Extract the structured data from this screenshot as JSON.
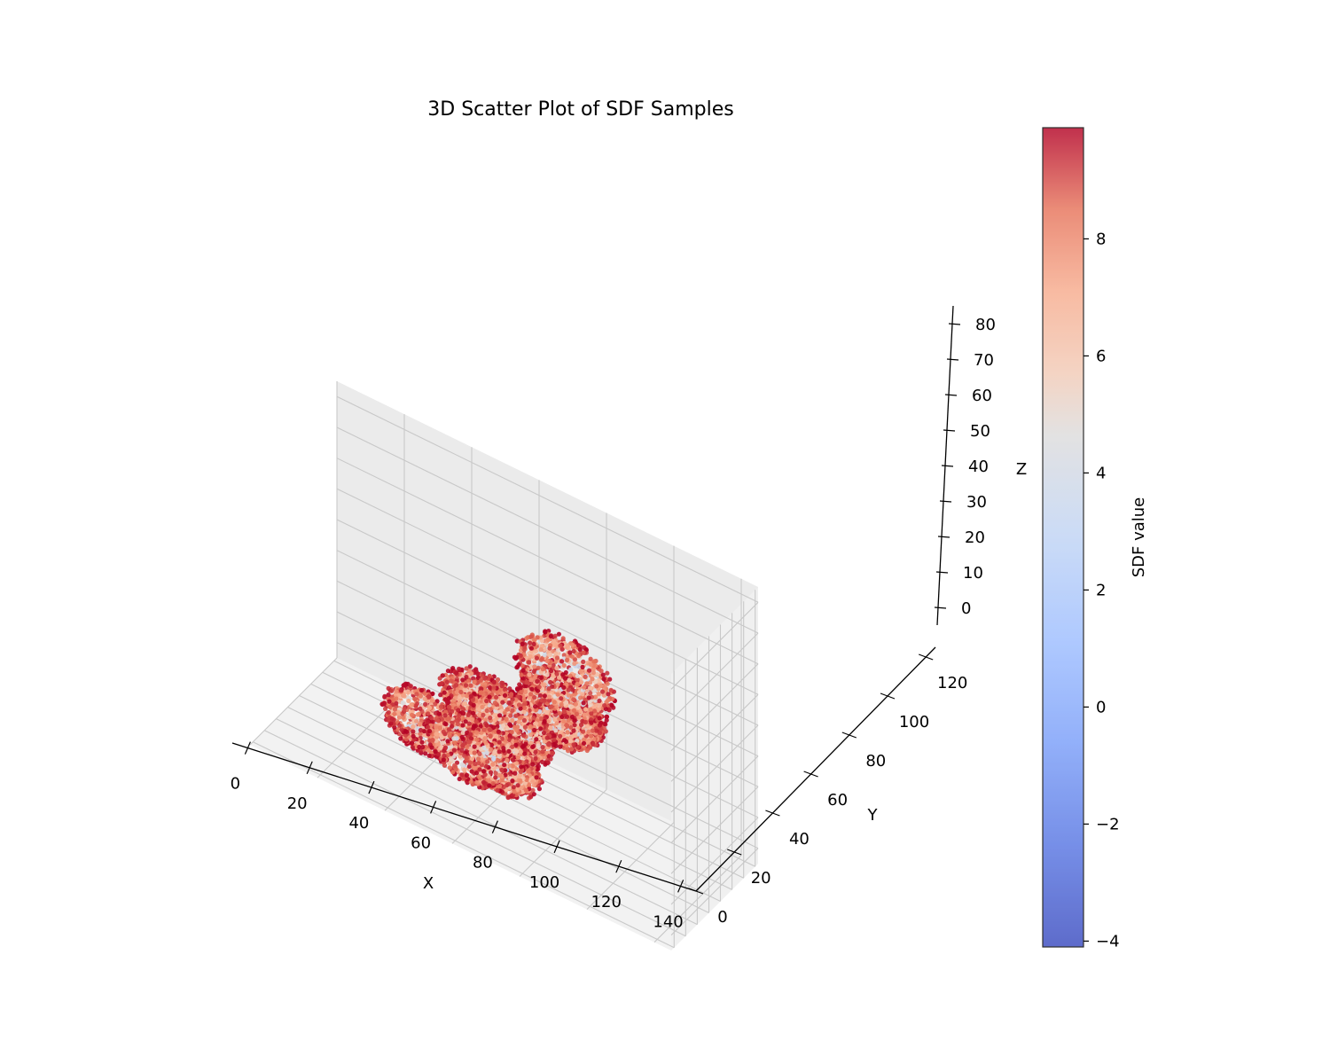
{
  "chart_data": {
    "type": "scatter",
    "projection": "3d",
    "title": "3D Scatter Plot of SDF Samples",
    "xlabel": "X",
    "ylabel": "Y",
    "zlabel": "Z",
    "xlim": [
      -5,
      145
    ],
    "ylim": [
      0,
      125
    ],
    "zlim": [
      -5,
      85
    ],
    "xticks": [
      "0",
      "20",
      "40",
      "60",
      "80",
      "100",
      "120",
      "140"
    ],
    "yticks": [
      "0",
      "20",
      "40",
      "60",
      "80",
      "100",
      "120"
    ],
    "zticks": [
      "0",
      "10",
      "20",
      "30",
      "40",
      "50",
      "60",
      "70",
      "80"
    ],
    "grid": true,
    "colormap": "coolwarm",
    "colorbar": {
      "label": "SDF value",
      "range": [
        -4.1,
        9.9
      ],
      "ticks": [
        "−4",
        "−2",
        "0",
        "2",
        "4",
        "6",
        "8"
      ]
    },
    "clusters": [
      {
        "center": [
          12,
          70,
          20
        ],
        "radius": 13
      },
      {
        "center": [
          30,
          72,
          22
        ],
        "radius": 13
      },
      {
        "center": [
          55,
          78,
          42
        ],
        "radius": 15
      },
      {
        "center": [
          60,
          55,
          20
        ],
        "radius": 14
      },
      {
        "center": [
          85,
          62,
          25
        ],
        "radius": 14
      },
      {
        "center": [
          80,
          40,
          12
        ],
        "radius": 12
      },
      {
        "center": [
          100,
          70,
          30
        ],
        "radius": 13
      },
      {
        "center": [
          115,
          60,
          20
        ],
        "radius": 13
      },
      {
        "center": [
          130,
          72,
          25
        ],
        "radius": 12
      }
    ]
  }
}
